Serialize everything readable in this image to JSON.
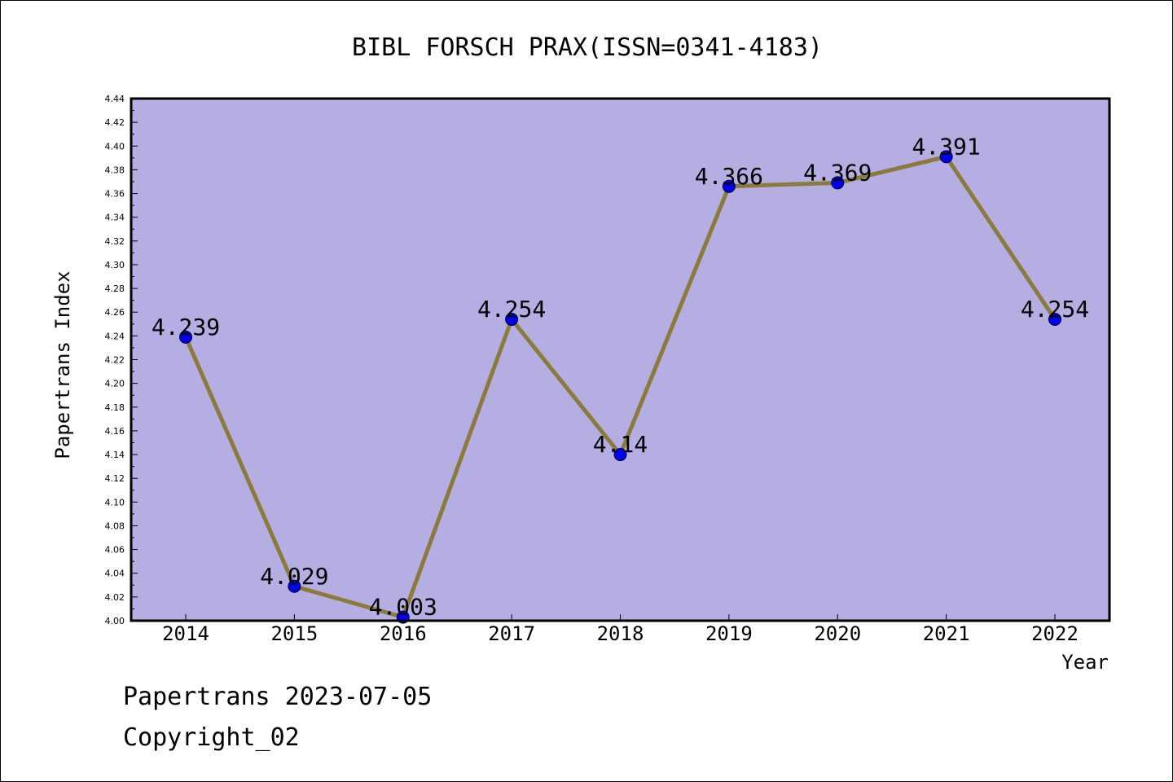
{
  "title": "BIBL FORSCH PRAX(ISSN=0341-4183)",
  "footer": {
    "line1": "Papertrans 2023-07-05",
    "line2": "Copyright_02"
  },
  "colors": {
    "plot_background": "#b4aee2",
    "line": "#8c7a3c",
    "marker": "#0000ee",
    "axes": "#000000"
  },
  "chart_data": {
    "type": "line",
    "title": "BIBL FORSCH PRAX(ISSN=0341-4183)",
    "xlabel": "Year",
    "ylabel": "Papertrans Index",
    "categories": [
      "2014",
      "2015",
      "2016",
      "2017",
      "2018",
      "2019",
      "2020",
      "2021",
      "2022"
    ],
    "series": [
      {
        "values": [
          4.239,
          4.029,
          4.003,
          4.254,
          4.14,
          4.366,
          4.369,
          4.391,
          4.254
        ],
        "labels": [
          "4.239",
          "4.029",
          "4.003",
          "4.254",
          "4.14",
          "4.366",
          "4.369",
          "4.391",
          "4.254"
        ]
      }
    ],
    "ylim": [
      4.0,
      4.44
    ],
    "yticks": [
      "4.00",
      "4.02",
      "4.04",
      "4.06",
      "4.08",
      "4.10",
      "4.12",
      "4.14",
      "4.16",
      "4.18",
      "4.20",
      "4.22",
      "4.24",
      "4.26",
      "4.28",
      "4.30",
      "4.32",
      "4.34",
      "4.36",
      "4.38",
      "4.40",
      "4.42",
      "4.44"
    ],
    "grid": false,
    "legend": "none"
  }
}
